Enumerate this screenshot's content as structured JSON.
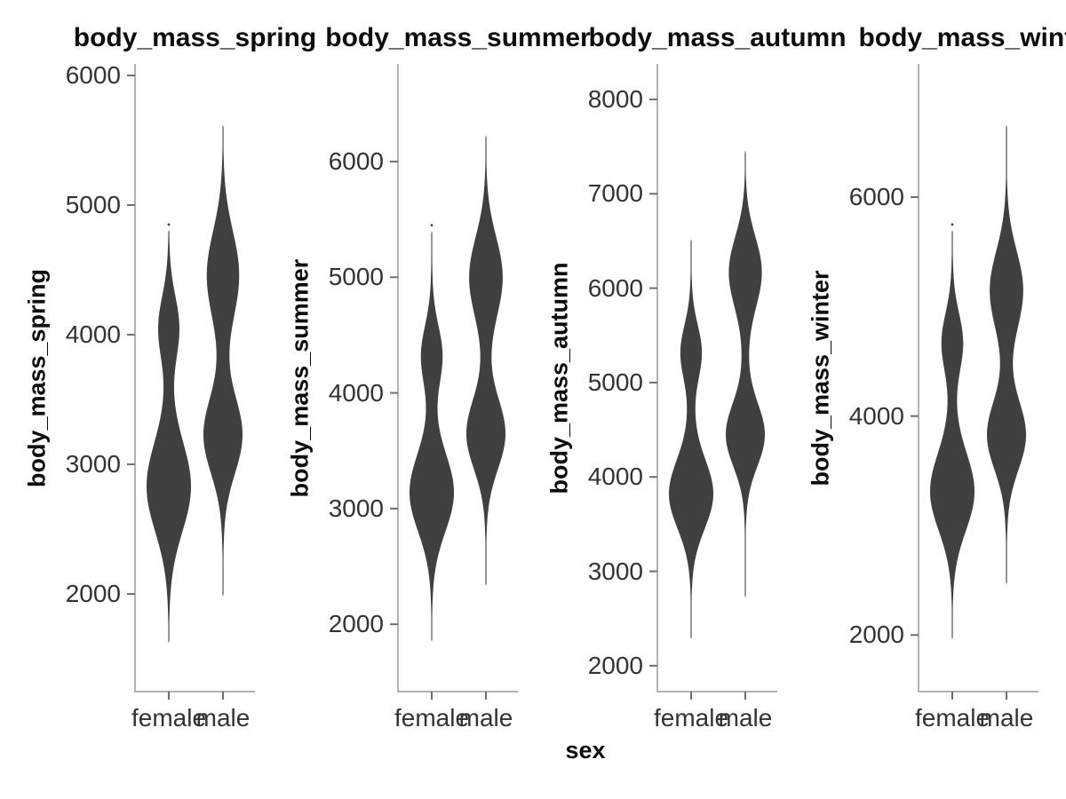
{
  "figure": {
    "background": "#ffffff",
    "colors": {
      "violin_fill": "#404040",
      "spine": "#b3b3b3",
      "tick": "#6e6e6e",
      "tick_label": "#333333",
      "text": "#0d0d0d"
    }
  },
  "chart_data": {
    "type": "violin",
    "xlabel": "sex",
    "categories": [
      "female",
      "male"
    ],
    "legend": "none",
    "grid": false,
    "panels": [
      {
        "title": "body_mass_spring",
        "ylabel": "body_mass_spring",
        "yticks": [
          6000,
          5000,
          4000,
          3000,
          2000
        ],
        "ylim": [
          1247,
          6089
        ],
        "violins": [
          {
            "sex": "female",
            "min": 1620,
            "max": 4810,
            "outlier": 4850,
            "relative_peak": 1.0,
            "modes": [
              {
                "center": 2820,
                "sd": 340,
                "weight": 1.0
              },
              {
                "center": 4060,
                "sd": 240,
                "weight": 0.45
              },
              {
                "center": 3300,
                "sd": 750,
                "weight": 0.13
              }
            ]
          },
          {
            "sex": "male",
            "min": 1980,
            "max": 5620,
            "outlier": null,
            "relative_peak": 0.88,
            "modes": [
              {
                "center": 3220,
                "sd": 290,
                "weight": 1.0
              },
              {
                "center": 4470,
                "sd": 330,
                "weight": 0.82
              },
              {
                "center": 3800,
                "sd": 800,
                "weight": 0.13
              }
            ]
          }
        ]
      },
      {
        "title": "body_mass_summer",
        "ylabel": "body_mass_summer",
        "yticks": [
          6000,
          5000,
          4000,
          3000,
          2000
        ],
        "ylim": [
          1418,
          6844
        ],
        "violins": [
          {
            "sex": "female",
            "min": 1850,
            "max": 5400,
            "outlier": 5450,
            "relative_peak": 1.0,
            "modes": [
              {
                "center": 3130,
                "sd": 330,
                "weight": 1.0
              },
              {
                "center": 4330,
                "sd": 250,
                "weight": 0.45
              },
              {
                "center": 3650,
                "sd": 780,
                "weight": 0.13
              }
            ]
          },
          {
            "sex": "male",
            "min": 2330,
            "max": 6230,
            "outlier": null,
            "relative_peak": 0.88,
            "modes": [
              {
                "center": 3640,
                "sd": 300,
                "weight": 1.0
              },
              {
                "center": 5010,
                "sd": 340,
                "weight": 0.85
              },
              {
                "center": 4300,
                "sd": 820,
                "weight": 0.13
              }
            ]
          }
        ]
      },
      {
        "title": "body_mass_autumn",
        "ylabel": "body_mass_autumn",
        "yticks": [
          8000,
          7000,
          6000,
          5000,
          4000,
          3000,
          2000
        ],
        "ylim": [
          1726,
          8376
        ],
        "violins": [
          {
            "sex": "female",
            "min": 2280,
            "max": 6520,
            "outlier": null,
            "relative_peak": 1.0,
            "modes": [
              {
                "center": 3810,
                "sd": 360,
                "weight": 1.0
              },
              {
                "center": 5330,
                "sd": 280,
                "weight": 0.45
              },
              {
                "center": 4500,
                "sd": 850,
                "weight": 0.13
              }
            ]
          },
          {
            "sex": "male",
            "min": 2720,
            "max": 7460,
            "outlier": null,
            "relative_peak": 0.88,
            "modes": [
              {
                "center": 4440,
                "sd": 330,
                "weight": 1.0
              },
              {
                "center": 6180,
                "sd": 370,
                "weight": 0.85
              },
              {
                "center": 5200,
                "sd": 900,
                "weight": 0.13
              }
            ]
          }
        ]
      },
      {
        "title": "body_mass_winter",
        "ylabel": "body_mass_winter",
        "yticks": [
          6000,
          4000,
          2000
        ],
        "ylim": [
          1483,
          7217
        ],
        "violins": [
          {
            "sex": "female",
            "min": 1960,
            "max": 5700,
            "outlier": 5750,
            "relative_peak": 1.0,
            "modes": [
              {
                "center": 3300,
                "sd": 350,
                "weight": 1.0
              },
              {
                "center": 4680,
                "sd": 260,
                "weight": 0.45
              },
              {
                "center": 3950,
                "sd": 800,
                "weight": 0.13
              }
            ]
          },
          {
            "sex": "male",
            "min": 2460,
            "max": 6660,
            "outlier": null,
            "relative_peak": 0.88,
            "modes": [
              {
                "center": 3820,
                "sd": 310,
                "weight": 1.0
              },
              {
                "center": 5160,
                "sd": 350,
                "weight": 0.85
              },
              {
                "center": 4450,
                "sd": 850,
                "weight": 0.13
              }
            ]
          }
        ]
      }
    ]
  }
}
